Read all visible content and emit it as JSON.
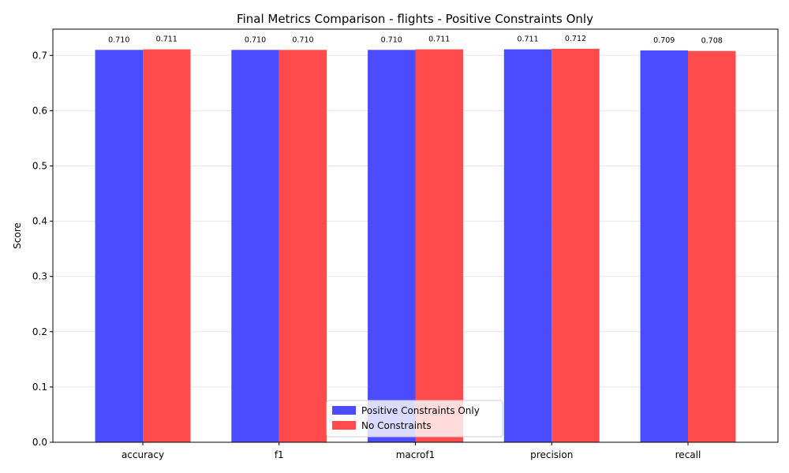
{
  "chart_data": {
    "type": "bar",
    "title": "Final Metrics Comparison - flights - Positive Constraints Only",
    "xlabel": "",
    "ylabel": "Score",
    "categories": [
      "accuracy",
      "f1",
      "macrof1",
      "precision",
      "recall"
    ],
    "series": [
      {
        "name": "Positive Constraints Only",
        "color": "#4b4bff",
        "values": [
          0.71,
          0.71,
          0.71,
          0.711,
          0.709
        ],
        "labels": [
          "0.710",
          "0.710",
          "0.710",
          "0.711",
          "0.709"
        ]
      },
      {
        "name": "No Constraints",
        "color": "#ff4b4b",
        "values": [
          0.711,
          0.71,
          0.711,
          0.712,
          0.708
        ],
        "labels": [
          "0.711",
          "0.710",
          "0.711",
          "0.712",
          "0.708"
        ]
      }
    ],
    "ylim": [
      0,
      0.7475
    ],
    "yticks": [
      0.0,
      0.1,
      0.2,
      0.3,
      0.4,
      0.5,
      0.6,
      0.7
    ],
    "ytick_labels": [
      "0.0",
      "0.1",
      "0.2",
      "0.3",
      "0.4",
      "0.5",
      "0.6",
      "0.7"
    ],
    "grid": "y",
    "legend_position": "bottom-center"
  }
}
